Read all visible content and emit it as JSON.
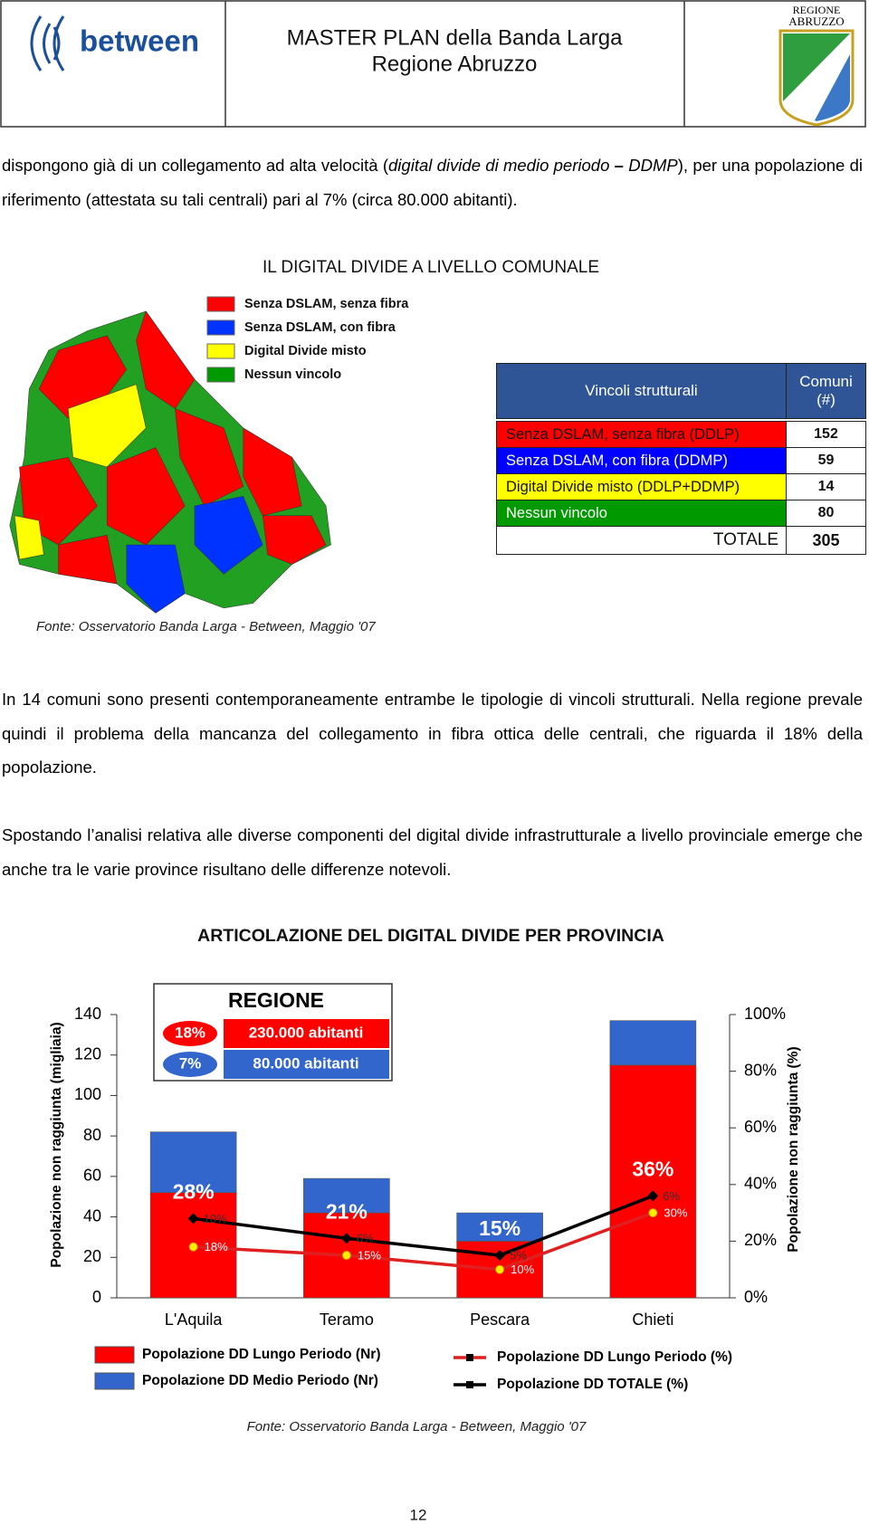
{
  "header": {
    "logo_text": "between",
    "title": "MASTER PLAN della Banda Larga",
    "subtitle": "Regione Abruzzo",
    "region_logo": [
      "REGIONE",
      "ABRUZZO"
    ]
  },
  "paragraph_1": [
    "dispongono già di un collegamento ad alta velocità (",
    "digital divide di medio periodo",
    " – ",
    "DDMP",
    "), per una popolazione di riferimento (attestata su tali centrali) pari al 7% (circa 80.000 abitanti)."
  ],
  "figure_1": {
    "title": "IL DIGITAL DIVIDE A LIVELLO COMUNALE",
    "legend": [
      {
        "label": "Senza DSLAM, senza fibra",
        "color": "#ff0000"
      },
      {
        "label": "Senza DSLAM, con fibra",
        "color": "#0033ff"
      },
      {
        "label": "Digital Divide misto",
        "color": "#ffff00"
      },
      {
        "label": "Nessun vincolo",
        "color": "#009900"
      }
    ],
    "table": {
      "header": [
        "Vincoli strutturali",
        "Comuni (#)"
      ],
      "rows": [
        {
          "label": "Senza DSLAM, senza fibra (DDLP)",
          "value": "152",
          "color": "#ff0000"
        },
        {
          "label": "Senza DSLAM, con fibra (DDMP)",
          "value": "59",
          "color": "#0000ff"
        },
        {
          "label": "Digital Divide misto (DDLP+DDMP)",
          "value": "14",
          "color": "#ffff00"
        },
        {
          "label": "Nessun vincolo",
          "value": "80",
          "color": "#009900"
        }
      ],
      "total_label": "TOTALE",
      "total": "305"
    },
    "source": "Fonte: Osservatorio Banda Larga - Between, Maggio '07"
  },
  "paragraph_2": "In 14 comuni sono presenti contemporaneamente entrambe le tipologie di vincoli strutturali. Nella regione prevale quindi il problema della mancanza del collegamento in fibra ottica delle centrali, che riguarda il 18% della popolazione.",
  "paragraph_3": "Spostando l’analisi relativa alle diverse componenti del digital divide infrastrutturale a livello provinciale emerge che anche tra le varie province risultano delle differenze notevoli.",
  "chart_data": {
    "type": "bar",
    "stacked": true,
    "title": "ARTICOLAZIONE DEL DIGITAL DIVIDE PER PROVINCIA",
    "y_label": "Popolazione non raggiunta (migliaia)",
    "y2_label": "Popolazione non raggiunta (%)",
    "categories": [
      "L'Aquila",
      "Teramo",
      "Pescara",
      "Chieti"
    ],
    "series": [
      {
        "name": "Popolazione DD Lungo Periodo (Nr)",
        "color": "#ff0000",
        "values": [
          52,
          42,
          28,
          115
        ]
      },
      {
        "name": "Popolazione DD Medio Periodo (Nr)",
        "color": "#3366cc",
        "values": [
          30,
          17,
          14,
          22
        ]
      },
      {
        "name": "Popolazione DD Lungo Periodo (%)",
        "type": "line",
        "axis": "y2",
        "color": "#e02020",
        "values": [
          18,
          15,
          10,
          30
        ],
        "value_labels": [
          "18%",
          "15%",
          "10%",
          "30%"
        ]
      },
      {
        "name": "Popolazione DD TOTALE (%)",
        "type": "line",
        "axis": "y2",
        "color": "#000000",
        "values": [
          28,
          21,
          15,
          36
        ],
        "value_labels": [
          "28%",
          "21%",
          "15%",
          "36%"
        ]
      }
    ],
    "medio_periodo_pct": {
      "values": [
        10,
        6,
        5,
        6
      ],
      "value_labels": [
        "10%",
        "6%",
        "5%",
        "6%"
      ]
    },
    "ylim": [
      0,
      140
    ],
    "yticks": [
      0,
      20,
      40,
      60,
      80,
      100,
      120,
      140
    ],
    "y2lim": [
      0,
      100
    ],
    "y2ticks": [
      {
        "value": 0,
        "label": "0%"
      },
      {
        "value": 20,
        "label": "20%"
      },
      {
        "value": 40,
        "label": "40%"
      },
      {
        "value": 60,
        "label": "60%"
      },
      {
        "value": 80,
        "label": "80%"
      },
      {
        "value": 100,
        "label": "100%"
      }
    ],
    "regione": {
      "title": "REGIONE",
      "rows": [
        {
          "value": 18,
          "label": "18%",
          "text": "230.000 abitanti",
          "color": "#ff0000"
        },
        {
          "value": 7,
          "label": "7%",
          "text": "80.000 abitanti",
          "color": "#3366cc"
        }
      ]
    }
  },
  "source_2": "Fonte: Osservatorio Banda Larga - Between, Maggio '07",
  "page_number": "12"
}
